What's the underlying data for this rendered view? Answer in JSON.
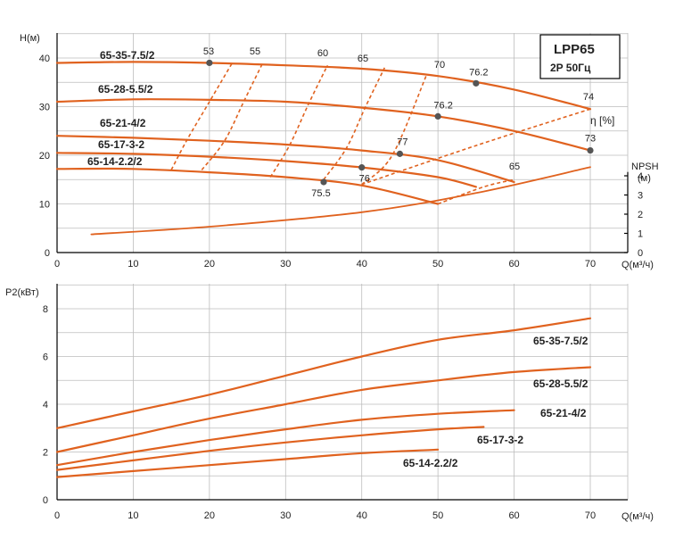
{
  "chart_data": [
    {
      "type": "line",
      "title": "LPP65",
      "subtitle": "2P 50Гц",
      "xlabel": "Q(м³/ч)",
      "ylabel": "H(м)",
      "xlim": [
        0,
        70
      ],
      "ylim": [
        0,
        40
      ],
      "x_ticks": [
        "0",
        "10",
        "20",
        "30",
        "40",
        "50",
        "60",
        "70"
      ],
      "y_ticks": [
        "0",
        "10",
        "20",
        "30",
        "40"
      ],
      "series": [
        {
          "name": "65-35-7.5/2",
          "x": [
            0,
            10,
            20,
            30,
            40,
            50,
            60,
            70
          ],
          "y": [
            39,
            39.2,
            39,
            38.5,
            37.8,
            36.3,
            33.5,
            29.5
          ]
        },
        {
          "name": "65-28-5.5/2",
          "x": [
            0,
            10,
            20,
            30,
            40,
            50,
            60,
            70
          ],
          "y": [
            31,
            31.5,
            31.4,
            31,
            29.8,
            28,
            25,
            21
          ]
        },
        {
          "name": "65-21-4/2",
          "x": [
            0,
            10,
            20,
            30,
            40,
            50,
            60
          ],
          "y": [
            24,
            23.6,
            23,
            22.2,
            21,
            19,
            14.5
          ]
        },
        {
          "name": "65-17-3-2",
          "x": [
            0,
            10,
            20,
            30,
            40,
            50,
            55
          ],
          "y": [
            20.5,
            20.3,
            19.7,
            18.8,
            17.5,
            15.5,
            13.5
          ]
        },
        {
          "name": "65-14-2.2/2",
          "x": [
            0,
            10,
            20,
            30,
            40,
            50
          ],
          "y": [
            17.2,
            17.2,
            16.5,
            15.5,
            13.8,
            10
          ]
        }
      ],
      "efficiency_lines": [
        {
          "label": "53",
          "x": [
            15,
            17,
            20,
            23
          ],
          "y": [
            17,
            23,
            31,
            39
          ]
        },
        {
          "label": "55",
          "x": [
            19,
            22,
            24.5,
            27
          ],
          "y": [
            17,
            23,
            31,
            39
          ]
        },
        {
          "label": "60",
          "x": [
            28,
            30.5,
            33,
            35.5
          ],
          "y": [
            15.5,
            22,
            30.5,
            38.5
          ]
        },
        {
          "label": "65",
          "x": [
            35,
            38,
            40.5,
            43
          ],
          "y": [
            15,
            21.5,
            30,
            38
          ]
        },
        {
          "label": "70",
          "x": [
            40,
            44,
            48.5
          ],
          "y": [
            14,
            20,
            36.5
          ]
        },
        {
          "label": "65",
          "x": [
            50,
            56,
            60
          ],
          "y": [
            10,
            13.5,
            15
          ]
        },
        {
          "label": "74",
          "x": [
            40,
            55,
            70
          ],
          "y": [
            14,
            22,
            29.5
          ]
        }
      ],
      "efficiency_points": [
        {
          "label": "53",
          "x": 20,
          "y": 39
        },
        {
          "label": "76.2",
          "x": 55,
          "y": 34.8
        },
        {
          "label": "76.2",
          "x": 50,
          "y": 28
        },
        {
          "label": "73",
          "x": 70,
          "y": 21
        },
        {
          "label": "77",
          "x": 45,
          "y": 20.3
        },
        {
          "label": "76",
          "x": 40,
          "y": 17.5
        },
        {
          "label": "75.5",
          "x": 35,
          "y": 14.5
        }
      ],
      "npsh": {
        "label": "NPSH",
        "unit": "(м)",
        "ticks": [
          "0",
          "1",
          "2",
          "3",
          "4"
        ],
        "x": [
          4.5,
          20,
          40,
          55,
          70
        ],
        "y": [
          0.95,
          1.35,
          2.1,
          3.1,
          4.45
        ]
      },
      "eta_label": "η [%]",
      "eff_scale_labels": [
        "74",
        "73",
        "65",
        "77",
        "76",
        "75.5"
      ]
    },
    {
      "type": "line",
      "xlabel": "Q(м³/ч)",
      "ylabel": "P2(кВт)",
      "xlim": [
        0,
        70
      ],
      "ylim": [
        0,
        8
      ],
      "x_ticks": [
        "0",
        "10",
        "20",
        "30",
        "40",
        "50",
        "60",
        "70"
      ],
      "y_ticks": [
        "0",
        "2",
        "4",
        "6",
        "8"
      ],
      "series": [
        {
          "name": "65-35-7.5/2",
          "x": [
            0,
            10,
            20,
            30,
            40,
            50,
            60,
            70
          ],
          "y": [
            3.0,
            3.7,
            4.4,
            5.2,
            6.0,
            6.7,
            7.1,
            7.6
          ]
        },
        {
          "name": "65-28-5.5/2",
          "x": [
            0,
            10,
            20,
            30,
            40,
            50,
            60,
            70
          ],
          "y": [
            2.0,
            2.7,
            3.4,
            4.0,
            4.6,
            5.0,
            5.35,
            5.55
          ]
        },
        {
          "name": "65-21-4/2",
          "x": [
            0,
            10,
            20,
            30,
            40,
            50,
            60
          ],
          "y": [
            1.45,
            2.0,
            2.5,
            2.95,
            3.35,
            3.6,
            3.75
          ]
        },
        {
          "name": "65-17-3-2",
          "x": [
            0,
            10,
            20,
            30,
            40,
            50,
            56
          ],
          "y": [
            1.25,
            1.65,
            2.05,
            2.4,
            2.7,
            2.95,
            3.05
          ]
        },
        {
          "name": "65-14-2.2/2",
          "x": [
            0,
            10,
            20,
            30,
            40,
            50
          ],
          "y": [
            0.95,
            1.2,
            1.45,
            1.7,
            1.95,
            2.1
          ]
        }
      ]
    }
  ]
}
